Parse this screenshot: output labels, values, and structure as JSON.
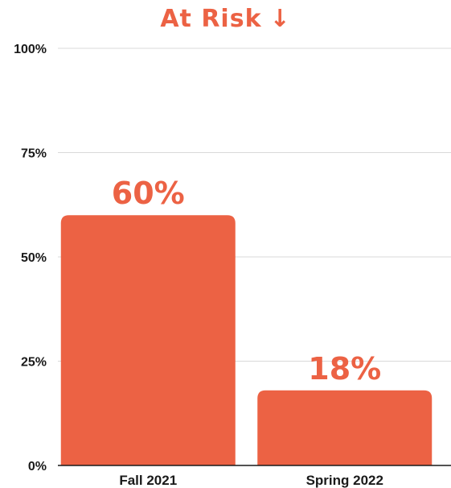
{
  "chart_data": {
    "type": "bar",
    "title": "At Risk",
    "title_icon": "arrow-down-icon",
    "title_icon_glyph": "↓",
    "categories": [
      "Fall 2021",
      "Spring 2022"
    ],
    "values": [
      60,
      18
    ],
    "value_labels": [
      "60%",
      "18%"
    ],
    "yticks": [
      0,
      25,
      50,
      75,
      100
    ],
    "ytick_labels": [
      "0%",
      "25%",
      "50%",
      "75%",
      "100%"
    ],
    "ylim": [
      0,
      100
    ],
    "xlabel": "",
    "ylabel": "",
    "grid": true,
    "colors": {
      "bar": "#EC6244",
      "title": "#EC6244",
      "data_label": "#EC6244",
      "grid": "#d9d9d9",
      "axis": "#1a1a1a"
    }
  }
}
